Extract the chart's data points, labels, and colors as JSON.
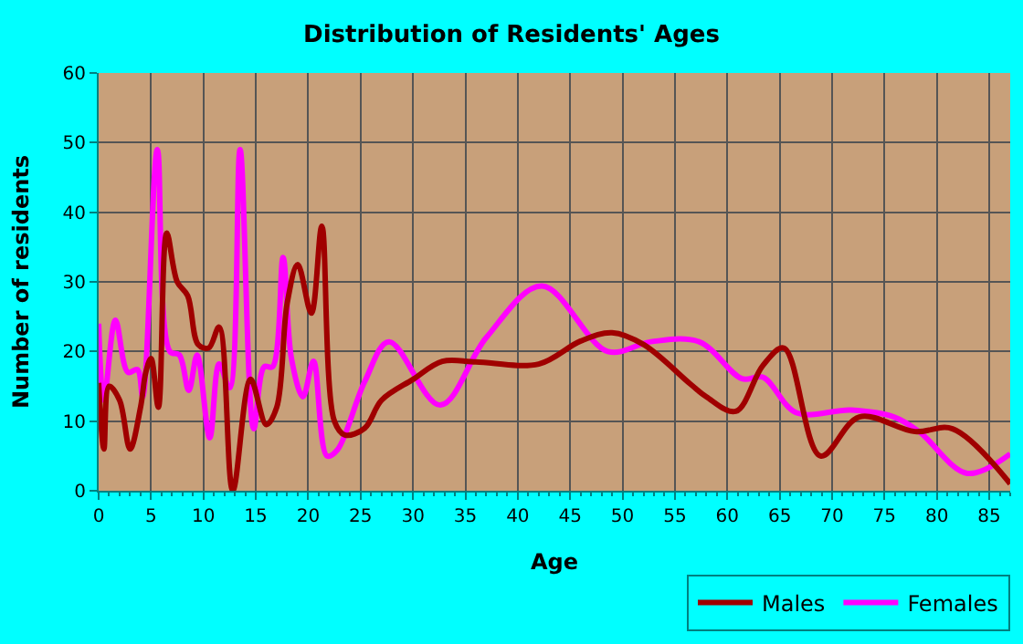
{
  "chart_data": {
    "type": "line",
    "title": "Distribution of Residents' Ages",
    "xlabel": "Age",
    "ylabel": "Number of residents",
    "xlim": [
      0,
      87
    ],
    "xticks": [
      0,
      5,
      10,
      15,
      20,
      25,
      30,
      35,
      40,
      45,
      50,
      55,
      60,
      65,
      70,
      75,
      80,
      85
    ],
    "ylim": [
      0,
      60
    ],
    "yticks": [
      0,
      10,
      20,
      30,
      40,
      50,
      60
    ],
    "grid": true,
    "legend": "bottom right",
    "marker": "none",
    "line_style": "solid",
    "series": [
      {
        "name": "Males",
        "color": "#a00000",
        "x": [
          0,
          0.5,
          1,
          2,
          3,
          4,
          4.5,
          5,
          5.7,
          6.5,
          7.5,
          8.5,
          9.5,
          10.5,
          11.5,
          12.8,
          14.5,
          16,
          17,
          18,
          19,
          20.3,
          21.3,
          22.5,
          23.5,
          25.4,
          27,
          30,
          32.8,
          36,
          42,
          46,
          49,
          52,
          56.5,
          58,
          60.8,
          63.4,
          65.4,
          68.9,
          72.6,
          77.9,
          81.5,
          87
        ],
        "values": [
          15.5,
          6,
          15,
          13,
          6,
          12,
          17,
          19,
          12,
          37,
          30,
          28,
          21,
          20.5,
          23.5,
          0,
          16,
          9.5,
          12,
          27,
          32.5,
          25.5,
          38,
          10,
          8,
          9,
          13,
          16,
          18.6,
          18.5,
          18.2,
          21.5,
          22.7,
          21,
          15.3,
          13.5,
          11.4,
          18,
          20.5,
          5,
          10.6,
          8.5,
          8.9,
          1
        ]
      },
      {
        "name": "Females",
        "color": "#ff00ff",
        "x": [
          0,
          0.5,
          1.6,
          2.8,
          3.7,
          4.2,
          5.6,
          6.8,
          7.7,
          8.6,
          9.4,
          10.6,
          11.5,
          12.5,
          13.5,
          14.8,
          15.8,
          16.6,
          17.6,
          18.4,
          19.5,
          20.5,
          21.8,
          22.8,
          25.4,
          27.7,
          32.6,
          37,
          42.3,
          48.6,
          52.7,
          57.3,
          61.4,
          63.4,
          66.6,
          71.8,
          75.9,
          78.3,
          82.9,
          87
        ],
        "values": [
          24,
          13,
          24.5,
          17,
          17.4,
          13.5,
          49,
          20,
          19.5,
          14.4,
          19.5,
          7.6,
          18.2,
          14.8,
          49,
          8.9,
          17.8,
          17.8,
          33.5,
          19,
          13.5,
          18.6,
          5,
          5.9,
          15.7,
          21.4,
          12.3,
          22,
          29.4,
          20,
          21.4,
          21.4,
          16.1,
          16.3,
          11.2,
          11.6,
          10.6,
          8.5,
          2.5,
          5.3
        ]
      }
    ]
  }
}
